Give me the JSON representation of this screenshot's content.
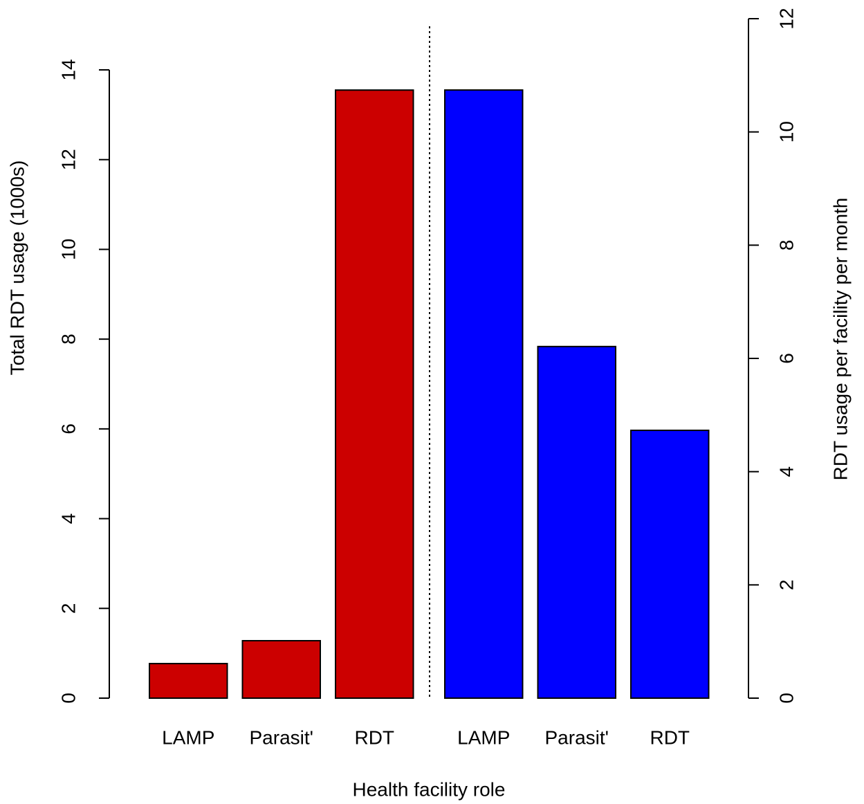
{
  "chart_data": {
    "type": "bar",
    "xlabel": "Health facility role",
    "ylabel": "Total RDT usage (1000s)",
    "y2label": "RDT usage per facility per month",
    "categories": [
      "LAMP",
      "Parasit'",
      "RDT"
    ],
    "series": [
      {
        "color": "#cc0000",
        "values": [
          0.77,
          1.28,
          13.55
        ]
      },
      {
        "color": "#0000ff",
        "values": [
          10.74,
          6.21,
          4.73
        ],
        "axis": "y2"
      }
    ],
    "ylim": [
      0,
      14
    ],
    "yticks": [
      0,
      2,
      4,
      6,
      8,
      10,
      12,
      14
    ],
    "y2lim": [
      0,
      12
    ],
    "y2ticks": [
      0,
      2,
      4,
      6,
      8,
      10,
      12
    ]
  }
}
